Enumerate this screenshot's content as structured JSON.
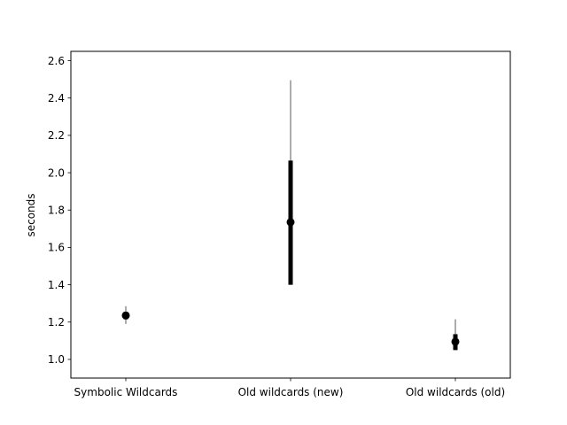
{
  "chart_data": {
    "type": "scatter",
    "subtype": "range-plot",
    "title": "",
    "xlabel": "",
    "ylabel": "seconds",
    "ylim": [
      0.9,
      2.65
    ],
    "yticks": [
      "1.0",
      "1.2",
      "1.4",
      "1.6",
      "1.8",
      "2.0",
      "2.2",
      "2.4",
      "2.6"
    ],
    "categories": [
      "Symbolic Wildcards",
      "Old wildcards (new)",
      "Old wildcards (old)"
    ],
    "points": [
      {
        "category": "Symbolic Wildcards",
        "center": 1.235,
        "iqr": [
          1.215,
          1.255
        ],
        "range": [
          1.19,
          1.285
        ]
      },
      {
        "category": "Old wildcards (new)",
        "center": 1.735,
        "iqr": [
          1.4,
          2.065
        ],
        "range": [
          1.4,
          2.495
        ]
      },
      {
        "category": "Old wildcards (old)",
        "center": 1.095,
        "iqr": [
          1.05,
          1.135
        ],
        "range": [
          1.05,
          1.215
        ]
      }
    ],
    "grid": false,
    "colors": {
      "center": "#000000",
      "iqr": "#000000",
      "range": "#808080"
    }
  }
}
